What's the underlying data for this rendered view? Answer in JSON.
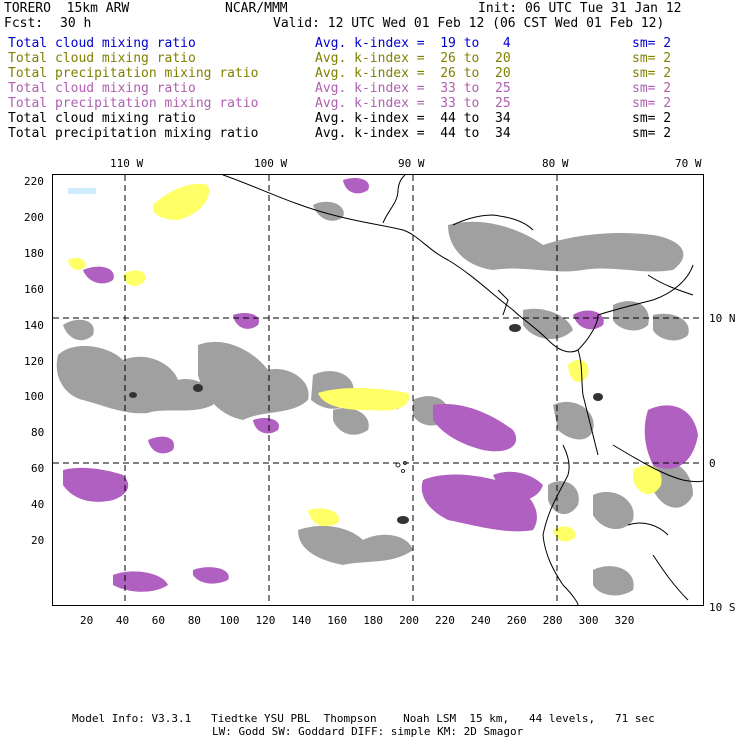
{
  "header": {
    "model": "TORERO  15km ARW",
    "org": "NCAR/MMM",
    "init": "Init: 06 UTC Tue 31 Jan 12",
    "fcst_label": "Fcst:",
    "fcst_value": "30 h",
    "valid": "Valid: 12 UTC Wed 01 Feb 12 (06 CST Wed 01 Feb 12)"
  },
  "legend": [
    {
      "field": "Total cloud mixing ratio",
      "kindex": "Avg. k-index =  19 to   4",
      "sm": "sm= 2",
      "color": "#0000cc"
    },
    {
      "field": "Total cloud mixing ratio",
      "kindex": "Avg. k-index =  26 to  20",
      "sm": "sm= 2",
      "color": "#808000"
    },
    {
      "field": "Total precipitation mixing ratio",
      "kindex": "Avg. k-index =  26 to  20",
      "sm": "sm= 2",
      "color": "#808000"
    },
    {
      "field": "Total cloud mixing ratio",
      "kindex": "Avg. k-index =  33 to  25",
      "sm": "sm= 2",
      "color": "#b060b0"
    },
    {
      "field": "Total precipitation mixing ratio",
      "kindex": "Avg. k-index =  33 to  25",
      "sm": "sm= 2",
      "color": "#b060b0"
    },
    {
      "field": "Total cloud mixing ratio",
      "kindex": "Avg. k-index =  44 to  34",
      "sm": "sm= 2",
      "color": "#000000"
    },
    {
      "field": "Total precipitation mixing ratio",
      "kindex": "Avg. k-index =  44 to  34",
      "sm": "sm= 2",
      "color": "#000000"
    }
  ],
  "axes": {
    "lon_labels": [
      "110 W",
      "100 W",
      "90 W",
      "80 W",
      "70 W"
    ],
    "lat_labels": [
      "10 N",
      "0",
      "10 S"
    ],
    "x_ticks": [
      "20",
      "40",
      "60",
      "80",
      "100",
      "120",
      "140",
      "160",
      "180",
      "200",
      "220",
      "240",
      "260",
      "280",
      "300",
      "320"
    ],
    "y_ticks": [
      "220",
      "200",
      "180",
      "160",
      "140",
      "120",
      "100",
      "80",
      "60",
      "40",
      "20"
    ]
  },
  "colors": {
    "yellow": "#ffff66",
    "purple": "#b060c0",
    "gray": "#999999",
    "darkgray": "#333333",
    "lightblue": "#d0ecff"
  },
  "footer": {
    "line1": "Model Info: V3.3.1   Tiedtke YSU PBL  Thompson    Noah LSM  15 km,   44 levels,   71 sec",
    "line2": "LW: Godd SW: Goddard DIFF: simple KM: 2D Smagor"
  }
}
